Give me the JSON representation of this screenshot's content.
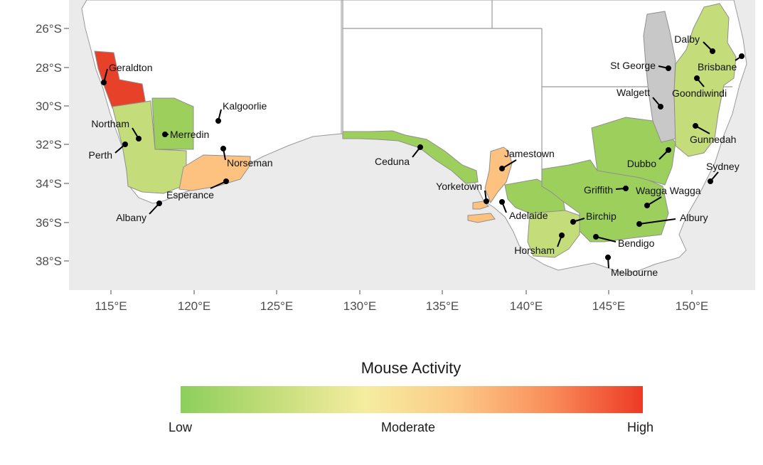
{
  "legend": {
    "title": "Mouse Activity",
    "low_label": "Low",
    "moderate_label": "Moderate",
    "high_label": "High",
    "colors": [
      "#8ccf5c",
      "#c4dd7a",
      "#f5eda0",
      "#fcc986",
      "#f98d5a",
      "#ec3a24"
    ]
  },
  "colors": {
    "ocean": "#ebebeb",
    "land": "#ffffff",
    "border": "#9a9a9a",
    "nodata": "#c8c8c8",
    "level_low": "#9ccf5c",
    "level_low_mod": "#c4dd7a",
    "level_mod_high": "#fdc27f",
    "level_high": "#e8412a",
    "tick_text": "#4d4d4d"
  },
  "axes": {
    "lat_ticks": [
      "26°S",
      "28°S",
      "30°S",
      "32°S",
      "34°S",
      "36°S",
      "38°S"
    ],
    "lon_ticks": [
      "115°E",
      "120°E",
      "125°E",
      "130°E",
      "135°E",
      "140°E",
      "145°E",
      "150°E"
    ]
  },
  "regions": [
    {
      "name": "Geraldton",
      "activity": "high"
    },
    {
      "name": "Northam",
      "activity": "low-moderate"
    },
    {
      "name": "Merredin",
      "activity": "low"
    },
    {
      "name": "Esperance",
      "activity": "moderate-high"
    },
    {
      "name": "Ceduna",
      "activity": "low"
    },
    {
      "name": "Yorketown",
      "activity": "moderate-high"
    },
    {
      "name": "Horsham",
      "activity": "low-moderate"
    },
    {
      "name": "Griffith",
      "activity": "low"
    },
    {
      "name": "Dubbo",
      "activity": "low"
    },
    {
      "name": "Walgett",
      "activity": "no data"
    },
    {
      "name": "Goondiwindi",
      "activity": "low-moderate"
    }
  ],
  "towns": [
    {
      "name": "Geraldton"
    },
    {
      "name": "Kalgoorlie"
    },
    {
      "name": "Northam"
    },
    {
      "name": "Merredin"
    },
    {
      "name": "Perth"
    },
    {
      "name": "Norseman"
    },
    {
      "name": "Esperance"
    },
    {
      "name": "Albany"
    },
    {
      "name": "Ceduna"
    },
    {
      "name": "Jamestown"
    },
    {
      "name": "Yorketown"
    },
    {
      "name": "Adelaide"
    },
    {
      "name": "Birchip"
    },
    {
      "name": "Horsham"
    },
    {
      "name": "Bendigo"
    },
    {
      "name": "Melbourne"
    },
    {
      "name": "Griffith"
    },
    {
      "name": "Wagga Wagga"
    },
    {
      "name": "Albury"
    },
    {
      "name": "Dubbo"
    },
    {
      "name": "Sydney"
    },
    {
      "name": "Gunnedah"
    },
    {
      "name": "Walgett"
    },
    {
      "name": "St George"
    },
    {
      "name": "Goondiwindi"
    },
    {
      "name": "Dalby"
    },
    {
      "name": "Brisbane"
    }
  ]
}
